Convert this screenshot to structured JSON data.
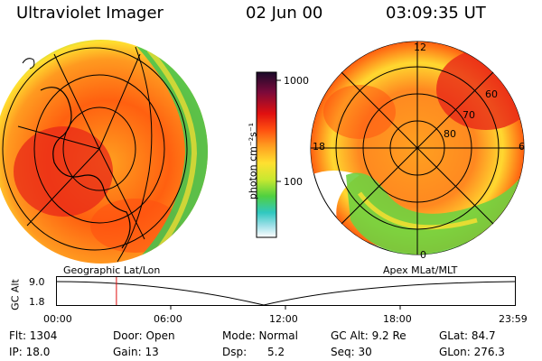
{
  "header": {
    "title": "Ultraviolet Imager",
    "date": "02 Jun 00",
    "time": "03:09:35 UT"
  },
  "colorbar": {
    "label": "photon cm⁻²s⁻¹",
    "ticks": [
      "1000",
      "100"
    ]
  },
  "left_panel": {
    "caption": "Geographic Lat/Lon"
  },
  "right_panel": {
    "caption": "Apex MLat/MLT",
    "lat_labels": [
      "60",
      "70",
      "80"
    ],
    "mlt_labels": [
      "12",
      "18",
      "6",
      "0"
    ]
  },
  "altitude_plot": {
    "ylabel": "GC Alt",
    "yticks": [
      "9.0",
      "1.8"
    ],
    "xticks": [
      "00:00",
      "06:00",
      "12:00",
      "18:00",
      "23:59"
    ],
    "marker_time_hours": 3.16
  },
  "info": {
    "flt": "Flt: 1304",
    "door": "Door: Open",
    "mode": "Mode: Normal",
    "gc_alt": "GC Alt: 9.2 Re",
    "glat": "GLat:  84.7",
    "ip": "IP: 18.0",
    "gain": "Gain: 13",
    "dsp": "Dsp:      5.2",
    "seq": "Seq: 30",
    "glon": "GLon: 276.3"
  },
  "colors": {
    "palette": [
      "#1a0a2a",
      "#7a0a3a",
      "#e01010",
      "#ff5010",
      "#ffa020",
      "#ffe030",
      "#c8e830",
      "#50d040",
      "#30c8c0",
      "#a0e0e8",
      "#ffffff"
    ]
  }
}
